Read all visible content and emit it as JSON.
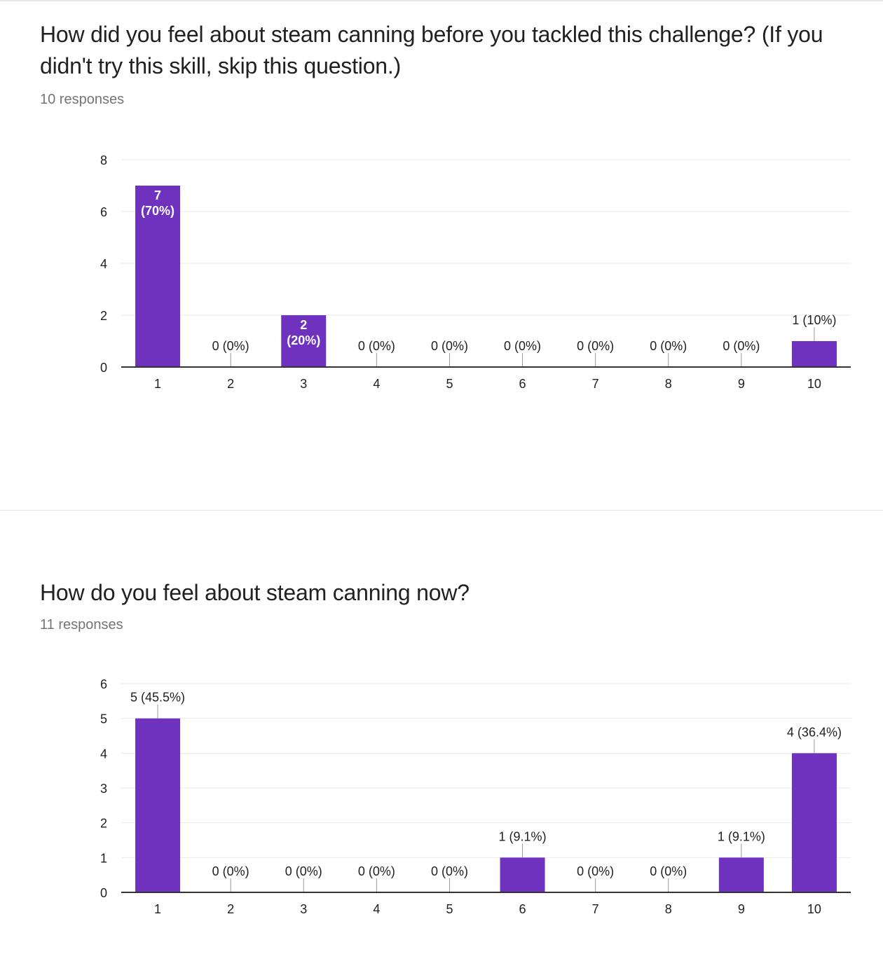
{
  "questions": [
    {
      "title": "How did you feel about steam canning before you tackled this challenge? (If you didn't try this skill, skip this question.)",
      "responses": "10 responses"
    },
    {
      "title": "How do you feel about steam canning now?",
      "responses": "11 responses"
    }
  ],
  "colors": {
    "bar": "#6f32be",
    "grid": "#e9e9e9",
    "axis": "#333333",
    "text": "#212121",
    "muted": "#757575"
  },
  "chart_data": [
    {
      "type": "bar",
      "categories": [
        "1",
        "2",
        "3",
        "4",
        "5",
        "6",
        "7",
        "8",
        "9",
        "10"
      ],
      "values": [
        7,
        0,
        2,
        0,
        0,
        0,
        0,
        0,
        0,
        1
      ],
      "labels": [
        "7 (70%)",
        "0 (0%)",
        "2 (20%)",
        "0 (0%)",
        "0 (0%)",
        "0 (0%)",
        "0 (0%)",
        "0 (0%)",
        "0 (0%)",
        "1 (10%)"
      ],
      "ylim": [
        0,
        8
      ],
      "yticks": [
        0,
        2,
        4,
        6,
        8
      ],
      "grid": true
    },
    {
      "type": "bar",
      "categories": [
        "1",
        "2",
        "3",
        "4",
        "5",
        "6",
        "7",
        "8",
        "9",
        "10"
      ],
      "values": [
        5,
        0,
        0,
        0,
        0,
        1,
        0,
        0,
        1,
        4
      ],
      "labels": [
        "5 (45.5%)",
        "0 (0%)",
        "0 (0%)",
        "0 (0%)",
        "0 (0%)",
        "1 (9.1%)",
        "0 (0%)",
        "0 (0%)",
        "1 (9.1%)",
        "4 (36.4%)"
      ],
      "ylim": [
        0,
        6
      ],
      "yticks": [
        0,
        1,
        2,
        3,
        4,
        5,
        6
      ],
      "grid": true
    }
  ]
}
